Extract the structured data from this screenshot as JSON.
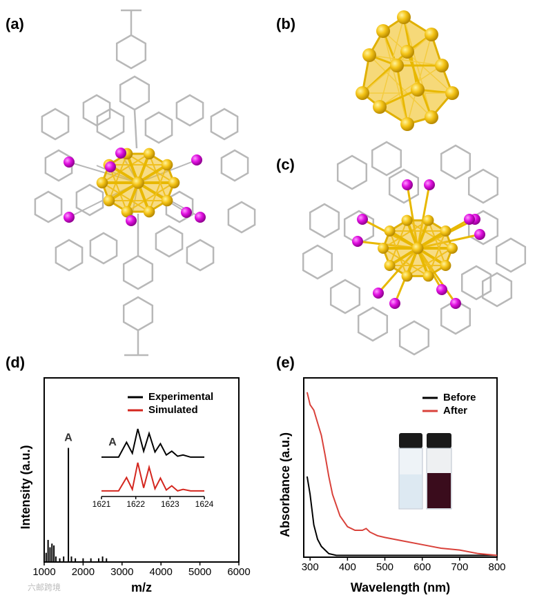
{
  "panels": {
    "a": "(a)",
    "b": "(b)",
    "c": "(c)",
    "d": "(d)",
    "e": "(e)"
  },
  "watermark": "六邮跨境",
  "chart_data": [
    {
      "type": "bar",
      "frame": true,
      "xlabel": "m/z",
      "ylabel": "Intensity (a.u.)",
      "annotation": "A",
      "x": [
        1050,
        1100,
        1150,
        1200,
        1250,
        1300,
        1400,
        1500,
        1622,
        1700,
        1800,
        2000,
        2200,
        2400,
        2500,
        2600
      ],
      "values": [
        5,
        12,
        8,
        10,
        9,
        3,
        2,
        3,
        62,
        3,
        2,
        2,
        2,
        2,
        3,
        2
      ],
      "color": "#000000",
      "xlim": [
        1000,
        6000
      ],
      "ylim": [
        0,
        100
      ],
      "xticks": [
        1000,
        2000,
        3000,
        4000,
        5000,
        6000
      ]
    },
    {
      "type": "line",
      "frame": false,
      "annotation": "A",
      "xlim": [
        1621,
        1624
      ],
      "ylim": [
        0,
        100
      ],
      "xticks": [
        1621,
        1622,
        1623,
        1624
      ],
      "series": [
        {
          "name": "Experimental",
          "color": "#000000",
          "x": [
            1621.0,
            1621.5,
            1621.73,
            1621.9,
            1622.06,
            1622.23,
            1622.39,
            1622.56,
            1622.72,
            1622.89,
            1623.05,
            1623.22,
            1623.38,
            1623.6,
            1624.0
          ],
          "values": [
            5,
            5,
            55,
            18,
            100,
            25,
            85,
            22,
            50,
            12,
            25,
            8,
            12,
            5,
            5
          ]
        },
        {
          "name": "Simulated",
          "color": "#d4261e",
          "x": [
            1621.0,
            1621.5,
            1621.73,
            1621.9,
            1622.06,
            1622.23,
            1622.39,
            1622.56,
            1622.72,
            1622.89,
            1623.05,
            1623.22,
            1623.38,
            1623.6,
            1624.0
          ],
          "values": [
            5,
            5,
            50,
            10,
            100,
            15,
            85,
            12,
            48,
            8,
            22,
            5,
            10,
            5,
            5
          ]
        }
      ]
    },
    {
      "type": "line",
      "frame": true,
      "xlabel": "Wavelength (nm)",
      "ylabel": "Absorbance (a.u.)",
      "xlim": [
        283,
        800
      ],
      "ylim": [
        0,
        100
      ],
      "xticks": [
        300,
        400,
        500,
        600,
        700,
        800
      ],
      "series": [
        {
          "name": "Before",
          "color": "#000000",
          "x": [
            292,
            300,
            310,
            320,
            330,
            340,
            350,
            370,
            400,
            500,
            600,
            700,
            800
          ],
          "values": [
            45,
            35,
            18,
            10,
            6,
            4,
            2,
            1,
            1,
            1,
            1,
            1,
            1
          ]
        },
        {
          "name": "After",
          "color": "#d9413a",
          "x": [
            292,
            300,
            310,
            320,
            330,
            340,
            350,
            360,
            380,
            400,
            420,
            440,
            450,
            460,
            480,
            500,
            550,
            600,
            650,
            700,
            750,
            800
          ],
          "values": [
            92,
            85,
            82,
            75,
            68,
            57,
            45,
            35,
            23,
            17,
            15,
            15,
            16,
            14,
            12,
            11,
            9,
            7,
            5,
            4,
            2,
            1
          ]
        }
      ]
    }
  ]
}
